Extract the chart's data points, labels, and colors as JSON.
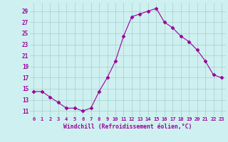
{
  "hours": [
    0,
    1,
    2,
    3,
    4,
    5,
    6,
    7,
    8,
    9,
    10,
    11,
    12,
    13,
    14,
    15,
    16,
    17,
    18,
    19,
    20,
    21,
    22,
    23
  ],
  "windchill": [
    14.5,
    14.5,
    13.5,
    12.5,
    11.5,
    11.5,
    11.0,
    11.5,
    14.5,
    17.0,
    20.0,
    24.5,
    28.0,
    28.5,
    29.0,
    29.5,
    27.0,
    26.0,
    24.5,
    23.5,
    22.0,
    20.0,
    17.5,
    17.0
  ],
  "line_color": "#990099",
  "marker": "D",
  "marker_size": 2.5,
  "bg_color": "#cff0f0",
  "grid_color": "#aad4d4",
  "tick_label_color": "#990099",
  "xlabel": "Windchill (Refroidissement éolien,°C)",
  "xlabel_color": "#990099",
  "ylabel_ticks": [
    11,
    13,
    15,
    17,
    19,
    21,
    23,
    25,
    27,
    29
  ],
  "xlim": [
    -0.5,
    23.5
  ],
  "ylim": [
    10.0,
    30.5
  ],
  "xtick_labels": [
    "0",
    "1",
    "2",
    "3",
    "4",
    "5",
    "6",
    "7",
    "8",
    "9",
    "10",
    "11",
    "12",
    "13",
    "14",
    "15",
    "16",
    "17",
    "18",
    "19",
    "20",
    "21",
    "22",
    "23"
  ]
}
